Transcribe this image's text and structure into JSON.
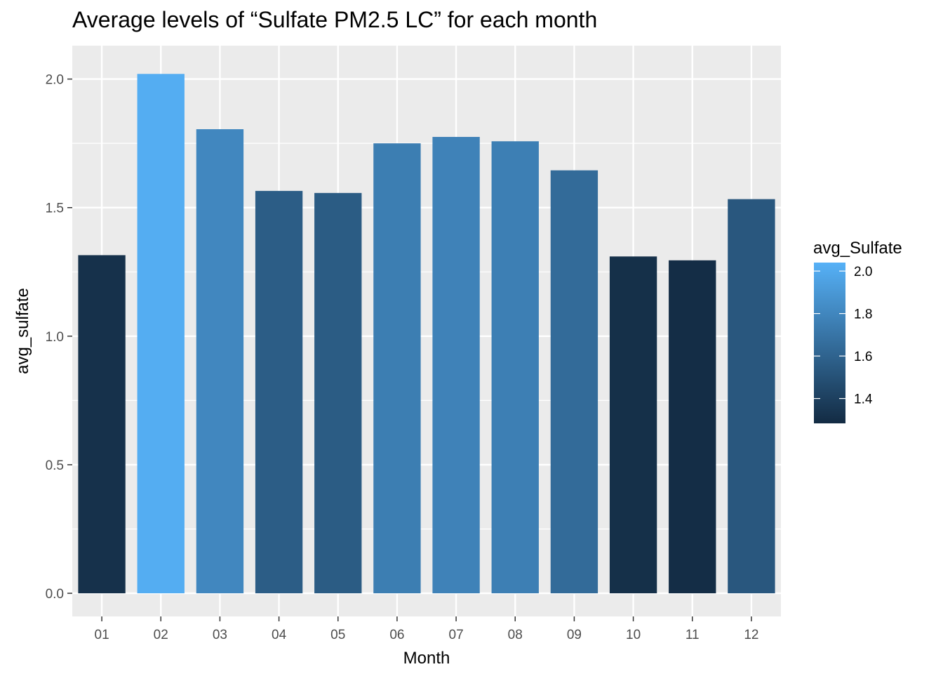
{
  "chart_data": {
    "type": "bar",
    "title": "Average levels of “Sulfate PM2.5 LC” for each month",
    "xlabel": "Month",
    "ylabel": "avg_sulfate",
    "categories": [
      "01",
      "02",
      "03",
      "04",
      "05",
      "06",
      "07",
      "08",
      "09",
      "10",
      "11",
      "12"
    ],
    "values": [
      1.315,
      2.02,
      1.805,
      1.565,
      1.557,
      1.75,
      1.775,
      1.758,
      1.645,
      1.31,
      1.295,
      1.533
    ],
    "ylim": [
      -0.09,
      2.13
    ],
    "yticks": [
      0.0,
      0.5,
      1.0,
      1.5,
      2.0
    ],
    "ytick_labels": [
      "0.0",
      "0.5",
      "1.0",
      "1.5",
      "2.0"
    ],
    "grid": true,
    "legend": {
      "title": "avg_Sulfate",
      "placement": "right",
      "type": "colorbar",
      "range": [
        1.283,
        2.04
      ],
      "ticks": [
        1.4,
        1.6,
        1.8,
        2.0
      ],
      "tick_labels": [
        "1.4",
        "1.6",
        "1.8",
        "2.0"
      ],
      "color_low": "#132B43",
      "color_high": "#56B1F7"
    },
    "panel_background": "#EBEBEB",
    "grid_color": "#FFFFFF"
  }
}
